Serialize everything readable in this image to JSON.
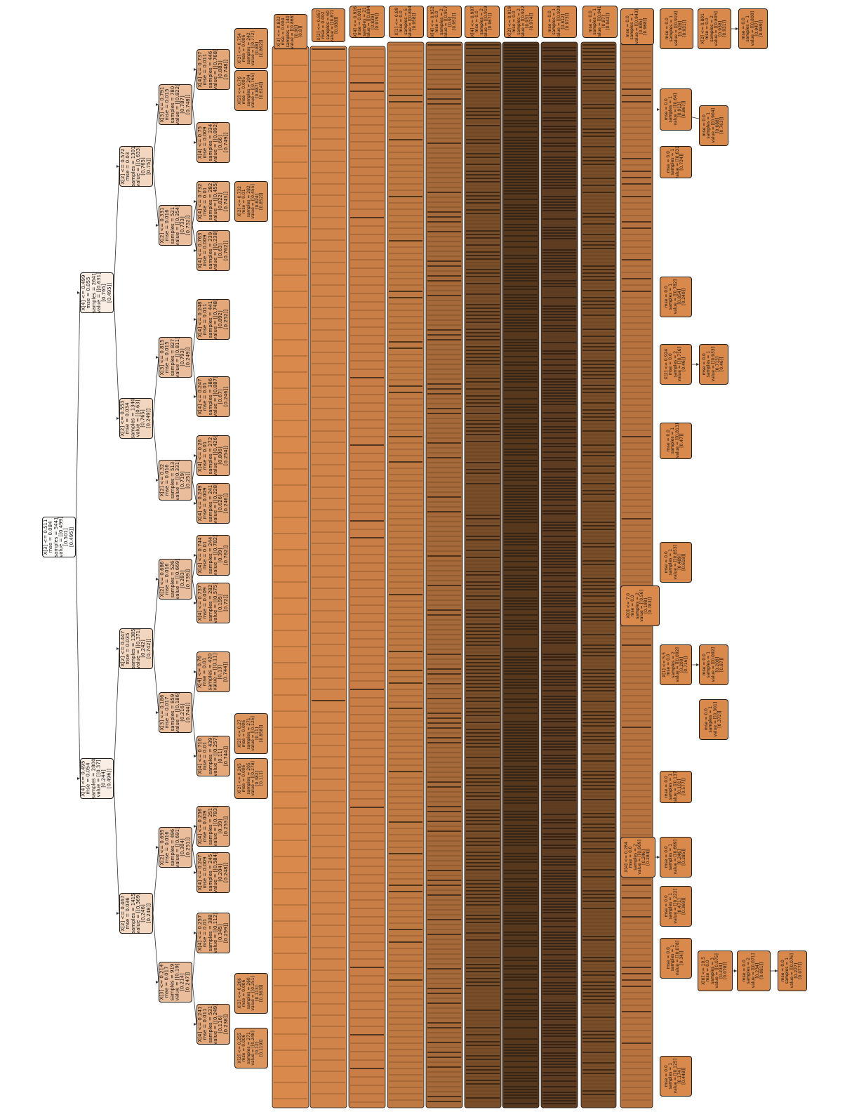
{
  "diagram": {
    "colors": {
      "leaf": "#d9894c",
      "dark": "#2b1d10",
      "border": "#1e1e1e",
      "edge": "#333333"
    },
    "nodes": [
      {
        "id": "root",
        "lines": [
          "X[3] <= 0.511",
          "mse = 0.084",
          "samples = 5441",
          "value = [[0.499]",
          "[0.501]",
          "[0.495]]"
        ],
        "shade": 0.02
      },
      {
        "id": "n1",
        "lines": [
          "X[4] <= 0.499",
          "mse = 0.055",
          "samples = 2641",
          "value = [[0.631]",
          "[0.765]",
          "[0.495]]"
        ],
        "shade": 0.15
      },
      {
        "id": "n2",
        "lines": [
          "X[4] <= 0.495",
          "mse = 0.054",
          "samples = 2800",
          "value = [[0.37]",
          "[0.244]",
          "[0.496]]"
        ],
        "shade": 0.15
      },
      {
        "id": "n3",
        "lines": [
          "X[2] <= 0.572",
          "mse = 0.03",
          "samples = 1301",
          "value = [[0.633]",
          "[0.765]",
          "[0.75]]"
        ],
        "shade": 0.35
      },
      {
        "id": "n4",
        "lines": [
          "X[2] <= 0.553",
          "mse = 0.034",
          "samples = 1340",
          "value = [[0.63]",
          "[0.765]",
          "[0.249]]"
        ],
        "shade": 0.35
      },
      {
        "id": "n5",
        "lines": [
          "X[2] <= 0.447",
          "mse = 0.035",
          "samples = 1385",
          "value = [[0.371]",
          "[0.242]",
          "[0.742]]"
        ],
        "shade": 0.35
      },
      {
        "id": "n6",
        "lines": [
          "X[2] <= 0.467",
          "mse = 0.036",
          "samples = 1415",
          "value = [[0.369]",
          "[0.246]",
          "[0.248]]"
        ],
        "shade": 0.35
      },
      {
        "id": "n7",
        "lines": [
          "X[3] <= 0.791",
          "mse = 0.015",
          "samples = 780",
          "value = [[0.822]",
          "[0.787]",
          "[0.748]]"
        ],
        "shade": 0.55
      },
      {
        "id": "n8",
        "lines": [
          "X[2] <= 0.331",
          "mse = 0.016",
          "samples = 521",
          "value = [[0.354]",
          "[0.733]",
          "[0.752]]"
        ],
        "shade": 0.55
      },
      {
        "id": "n9",
        "lines": [
          "X[3] <= 0.815",
          "mse = 0.015",
          "samples = 827",
          "value = [[0.811]",
          "[0.793]",
          "[0.249]]"
        ],
        "shade": 0.55
      },
      {
        "id": "n10",
        "lines": [
          "X[2] <= 0.32",
          "mse = 0.016",
          "samples = 513",
          "value = [[0.331]",
          "[0.719]",
          "[0.25]]"
        ],
        "shade": 0.55
      },
      {
        "id": "n11",
        "lines": [
          "X[2] <= 0.686",
          "mse = 0.016",
          "samples = 526",
          "value = [[0.669]",
          "[0.283]",
          "[0.739]]"
        ],
        "shade": 0.55
      },
      {
        "id": "n12",
        "lines": [
          "X[3] <= 0.186",
          "mse = 0.017",
          "samples = 859",
          "value = [[0.186]",
          "[0.216]",
          "[0.744]]"
        ],
        "shade": 0.55
      },
      {
        "id": "n13",
        "lines": [
          "X[2] <= 0.695",
          "mse = 0.016",
          "samples = 496",
          "value = [[0.691]",
          "[0.304]",
          "[0.251]]"
        ],
        "shade": 0.55
      },
      {
        "id": "n14",
        "lines": [
          "X[3] <= 0.214",
          "mse = 0.017",
          "samples = 919",
          "value = [[0.19]",
          "[0.214]",
          "[0.247]]"
        ],
        "shade": 0.55
      },
      {
        "id": "n15",
        "lines": [
          "X[4] <= 0.737",
          "mse = 0.011",
          "samples = 446",
          "value = [[0.768]",
          "[0.883]",
          "[0.748]]"
        ],
        "shade": 0.75
      },
      {
        "id": "n16",
        "lines": [
          "X[4] <= 0.75",
          "mse = 0.009",
          "samples = 334",
          "value = [[0.892]",
          "[0.66]",
          "[0.749]]"
        ],
        "shade": 0.75
      },
      {
        "id": "n17",
        "lines": [
          "X[4] <= 0.732",
          "mse = 0.01",
          "samples = 282",
          "value = [[0.455]",
          "[0.822]",
          "[0.743]]"
        ],
        "shade": 0.75
      },
      {
        "id": "n18",
        "lines": [
          "X[4] <= 0.763",
          "mse = 0.009",
          "samples = 239",
          "value = [[0.238]",
          "[0.63]",
          "[0.762]]"
        ],
        "shade": 0.75
      },
      {
        "id": "n19",
        "lines": [
          "X[4] <= 0.248",
          "mse = 0.011",
          "samples = 441",
          "value = [[0.748]",
          "[0.892]",
          "[0.252]]"
        ],
        "shade": 0.75
      },
      {
        "id": "n20",
        "lines": [
          "X[4] <= 0.247",
          "mse = 0.01",
          "samples = 386",
          "value = [[0.887]",
          "[0.67]",
          "[0.246]]"
        ],
        "shade": 0.75
      },
      {
        "id": "n21",
        "lines": [
          "X[4] <= 0.26",
          "mse = 0.01",
          "samples = 272",
          "value = [[0.426]",
          "[0.806]",
          "[0.254]]"
        ],
        "shade": 0.75
      },
      {
        "id": "n22",
        "lines": [
          "X[4] <= 0.249",
          "mse = 0.009",
          "samples = 241",
          "value = [[0.228]",
          "[0.626]",
          "[0.246]]"
        ],
        "shade": 0.75
      },
      {
        "id": "n23",
        "lines": [
          "X[4] <= 0.744",
          "mse = 0.01",
          "samples = 244",
          "value = [[0.782]",
          "[0.39]",
          "[0.762]]"
        ],
        "shade": 0.75
      },
      {
        "id": "n24",
        "lines": [
          "X[4] <= 0.737",
          "mse = 0.009",
          "samples = 282",
          "value = [[0.575]",
          "[0.195]",
          "[0.72]]"
        ],
        "shade": 0.75
      },
      {
        "id": "n25",
        "lines": [
          "X[4] <= 0.76",
          "mse = 0.01",
          "samples = 420",
          "value = [[0.11]",
          "[0.13]",
          "[0.744]]"
        ],
        "shade": 0.75
      },
      {
        "id": "n26",
        "lines": [
          "X[4] <= 0.716",
          "mse = 0.01",
          "samples = 439",
          "value = [[0.257]",
          "[0.11]",
          "[0.744]]"
        ],
        "shade": 0.75
      },
      {
        "id": "n27",
        "lines": [
          "X[4] <= 0.256",
          "mse = 0.009",
          "samples = 251",
          "value = [[0.783]",
          "[0.39]",
          "[0.253]]"
        ],
        "shade": 0.75
      },
      {
        "id": "n28",
        "lines": [
          "X[4] <= 0.247",
          "mse = 0.009",
          "samples = 245",
          "value = [[0.584]",
          "[0.204]",
          "[0.248]]"
        ],
        "shade": 0.75
      },
      {
        "id": "n29",
        "lines": [
          "X[4] <= 0.257",
          "mse = 0.01",
          "samples = 388",
          "value = [[0.112]",
          "[0.345]",
          "[0.259]]"
        ],
        "shade": 0.75
      },
      {
        "id": "n30",
        "lines": [
          "X[4] <= 0.241",
          "mse = 0.011",
          "samples = 531",
          "value = [[0.249]",
          "[0.116]",
          "[0.238]]"
        ],
        "shade": 0.75
      },
      {
        "id": "c5a",
        "lines": [
          "X[2] <= 0.754",
          "mse = 0.006",
          "samples = 242",
          "value = [[0.772]",
          "[0.88]",
          "[0.862]]"
        ],
        "shade": 0.9
      },
      {
        "id": "c5b",
        "lines": [
          "X[2] <= 0.76",
          "mse = 0.005",
          "samples = 204",
          "value = [[0.765]",
          "[0.887]",
          "[0.614]]"
        ],
        "shade": 0.9
      },
      {
        "id": "c5c",
        "lines": [
          "X[2] <= 0.732",
          "mse = 0.01",
          "samples = 282",
          "value = [[0.455]",
          "[0.824]",
          "[0.852]]"
        ],
        "shade": 0.9
      },
      {
        "id": "c5d",
        "lines": [
          "X[2] <= 0.265",
          "mse = 0.006",
          "samples = 205",
          "value = [[0.278]",
          "[0.382]",
          "[0.11]]"
        ],
        "shade": 0.9
      },
      {
        "id": "c5e",
        "lines": [
          "X[2] <= 0.27",
          "mse = 0.006",
          "samples = 271",
          "value = [[0.125]",
          "[0.11]",
          "[0.858]]"
        ],
        "shade": 0.9
      },
      {
        "id": "c5f",
        "lines": [
          "X[2] <= 0.266",
          "mse = 0.006",
          "samples = 260",
          "value = [[0.251]",
          "[0.113]",
          "[0.363]]"
        ],
        "shade": 0.9
      },
      {
        "id": "c5g",
        "lines": [
          "X[2] <= 0.255",
          "mse = 0.006",
          "samples = 271",
          "value = [[0.248]",
          "[0.12]",
          "[0.119]]"
        ],
        "shade": 0.9
      },
      {
        "id": "c6a",
        "lines": [
          "X[3] <= 0.832",
          "mse = 0.004",
          "samples = 140",
          "value = [[0.866]",
          "[0.90]",
          "[0.8]]"
        ],
        "shade": 0.95
      },
      {
        "id": "c7a",
        "lines": [
          "X[2] <= 0.857",
          "mse = 0.002",
          "samples = 60",
          "value = [[0.871]",
          "[0.938]]"
        ],
        "shade": 1
      },
      {
        "id": "c8a",
        "lines": [
          "X[4] <= 0.926",
          "mse = 0.001",
          "samples = 21",
          "value = [[0.894]",
          "[0.839]",
          "[0.979]]"
        ],
        "shade": 1
      },
      {
        "id": "c9a",
        "lines": [
          "X[1] <= 0.89",
          "mse = 0.0",
          "samples = 5",
          "value = [[0.894]",
          "[0.958]]"
        ],
        "shade": 1
      },
      {
        "id": "c10a",
        "lines": [
          "X[4] <= 0.952",
          "mse = 0.0",
          "samples = 2",
          "value = [[0.917]",
          "[0.9]",
          "[0.952]]"
        ],
        "shade": 1
      },
      {
        "id": "c11a",
        "lines": [
          "X[4] <= 0.907",
          "mse = 0.0",
          "samples = 2",
          "value = [[0.919]",
          "[0.967]]"
        ],
        "shade": 1
      },
      {
        "id": "c12a",
        "lines": [
          "X[2] <= 0.919",
          "mse = 0.0",
          "samples = 2",
          "value = [[0.922]",
          "[0.93]",
          "[0.974]]"
        ],
        "shade": 1
      },
      {
        "id": "c13a",
        "lines": [
          "mse = 0.0",
          "samples = 1",
          "value = [[0.929]",
          "[0.812]",
          "[0.973]]"
        ],
        "shade": 1
      },
      {
        "id": "c14a",
        "lines": [
          "mse = 0.0",
          "samples = 1",
          "value = [[0.941]",
          "[0.87]",
          "[0.942]]"
        ],
        "shade": 1
      },
      {
        "id": "c15a",
        "lines": [
          "mse = 0.0",
          "samples = 1",
          "value = [[0.943]",
          "[0.885]",
          "[0.968]]"
        ],
        "shade": 1
      },
      {
        "id": "c16a",
        "lines": [
          "mse = 0.0",
          "samples = 1",
          "value = [[0.919]",
          "[0.928]",
          "[0.931]]"
        ],
        "shade": 1
      },
      {
        "id": "c17a",
        "lines": [
          "X[2] <= 0.801",
          "mse = 0.0",
          "samples = 2",
          "value = [[0.805]",
          "[0.938]",
          "[0.931]]"
        ],
        "shade": 1
      },
      {
        "id": "c18a",
        "lines": [
          "mse = 0.0",
          "samples = 1",
          "value = [[0.808]",
          "[0.947]",
          "[0.989]]"
        ],
        "shade": 1
      },
      {
        "id": "d1",
        "lines": [
          "mse = 0.0",
          "samples = 1",
          "value = [[0.64]",
          "[0.913]",
          "[0.867]]"
        ],
        "shade": 1
      },
      {
        "id": "d2",
        "lines": [
          "mse = 0.0",
          "samples = 1",
          "value = [[0.904]",
          "[0.688]",
          "[0.763]]"
        ],
        "shade": 1
      },
      {
        "id": "d3",
        "lines": [
          "mse = 0.0",
          "samples = 1",
          "value = [[0.631]",
          "[0.724]]"
        ],
        "shade": 1
      },
      {
        "id": "d4",
        "lines": [
          "mse = 0.0",
          "samples = 1",
          "value = [[0.782]",
          "[0.854]",
          "[0.240]]"
        ],
        "shade": 1
      },
      {
        "id": "d5",
        "lines": [
          "X[2] <= 0.924",
          "mse = 0.0",
          "samples = 2",
          "value = [[0.716]",
          "[0.46]]"
        ],
        "shade": 1
      },
      {
        "id": "d6",
        "lines": [
          "mse = 0.0",
          "samples = 1",
          "value = [[0.933]",
          "[0.713]",
          "[0.46]]"
        ],
        "shade": 1
      },
      {
        "id": "d7",
        "lines": [
          "mse = 0.0",
          "samples = 1",
          "value = [[0.813]",
          "[0.47]]"
        ],
        "shade": 1
      },
      {
        "id": "d8",
        "lines": [
          "mse = 0.0",
          "samples = 1",
          "value = [[0.853]",
          "[0.489]",
          "[0.618]]"
        ],
        "shade": 1
      },
      {
        "id": "d9",
        "lines": [
          "X[0] <= 7.0",
          "mse = 0.0",
          "samples = 2",
          "value = [[0.56]",
          "[0.198]",
          "[0.783]]"
        ],
        "shade": 1
      },
      {
        "id": "d10",
        "lines": [
          "X[1] <= 5.5",
          "mse = 0.0",
          "samples = 2",
          "value = [[0.092]",
          "[0.209]",
          "[0.716]]"
        ],
        "shade": 1
      },
      {
        "id": "d11",
        "lines": [
          "mse = 0.0",
          "samples = 1",
          "value = [[0.092]",
          "[0.208]",
          "[0.87]]"
        ],
        "shade": 1
      },
      {
        "id": "d12",
        "lines": [
          "mse = 0.0",
          "samples = 1",
          "value = [[0.301]",
          "[0.372]]"
        ],
        "shade": 1
      },
      {
        "id": "d13",
        "lines": [
          "mse = 0.0",
          "samples = 1",
          "value = [[0.137]",
          "[0.101]",
          "[0.577]]"
        ],
        "shade": 1
      },
      {
        "id": "d14",
        "lines": [
          "X[4] <= 0.284",
          "mse = 0.0",
          "samples = 2",
          "value = [[0.669]",
          "[0.246]",
          "[0.284]]"
        ],
        "shade": 1
      },
      {
        "id": "d15",
        "lines": [
          "mse = 0.0",
          "samples = 1",
          "value = [[0.669]",
          "[0.246]",
          "[0.285]]"
        ],
        "shade": 1
      },
      {
        "id": "d16",
        "lines": [
          "mse = 0.0",
          "samples = 1",
          "value = [[0.222]",
          "[0.471]",
          "[0.369]]"
        ],
        "shade": 1
      },
      {
        "id": "d17",
        "lines": [
          "mse = 0.0",
          "samples = 1",
          "value = [[0.078]",
          "[0.34]]"
        ],
        "shade": 1
      },
      {
        "id": "d18",
        "lines": [
          "X[0] <= 10.5",
          "mse = 0.0",
          "samples = 3",
          "value = [[0.075]",
          "[0.234]",
          "[0.078]]"
        ],
        "shade": 1
      },
      {
        "id": "d19",
        "lines": [
          "mse = 0.0",
          "samples = 2",
          "value = [[0.071]",
          "[0.234]",
          "[0.081]]"
        ],
        "shade": 1
      },
      {
        "id": "d20",
        "lines": [
          "mse = 0.0",
          "samples = 1",
          "value = [[0.076]",
          "[0.227]",
          "[0.077]]"
        ],
        "shade": 1
      },
      {
        "id": "d21",
        "lines": [
          "mse = 0.0",
          "samples = 1",
          "value = [[0.125]",
          "[0.174]",
          "[0.448]]"
        ],
        "shade": 1
      }
    ]
  }
}
